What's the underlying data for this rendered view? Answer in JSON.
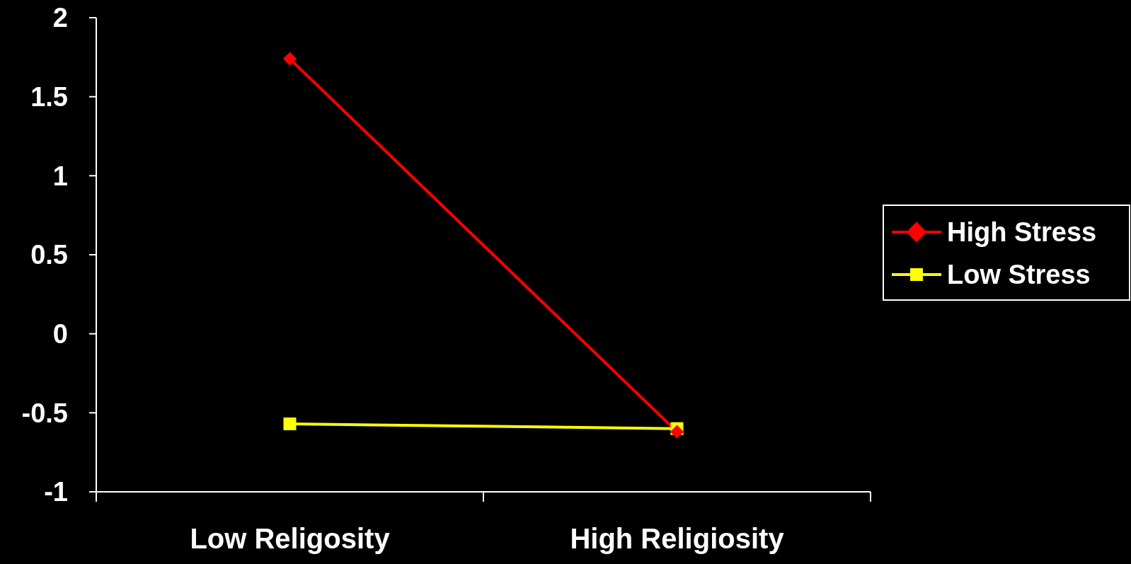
{
  "chart_data": {
    "type": "line",
    "categories": [
      "Low Religosity",
      "High Religiosity"
    ],
    "series": [
      {
        "name": "High Stress",
        "color": "#ff0000",
        "marker": "diamond",
        "values": [
          1.74,
          -0.62
        ]
      },
      {
        "name": "Low Stress",
        "color": "#ffff00",
        "marker": "square",
        "values": [
          -0.57,
          -0.6
        ]
      }
    ],
    "ylim": [
      -1,
      2
    ],
    "yticks": [
      -1,
      -0.5,
      0,
      0.5,
      1,
      1.5,
      2
    ],
    "legend": "right"
  }
}
